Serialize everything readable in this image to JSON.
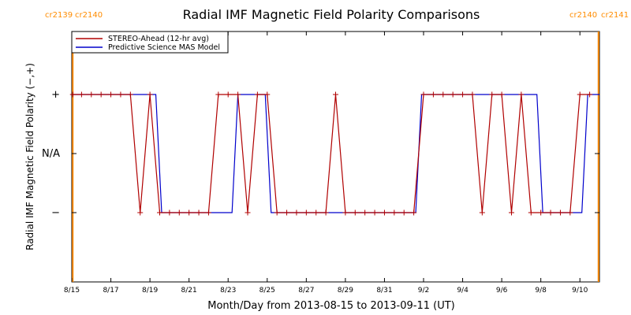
{
  "chart_data": {
    "type": "line",
    "title": "Radial IMF Magnetic Field Polarity Comparisons",
    "xlabel": "Month/Day from 2013-08-15 to 2013-09-11 (UT)",
    "ylabel": "Radial IMF Magnetic Field Polarity (−,+)",
    "x_range_days": [
      0,
      27
    ],
    "y_categories": [
      "−",
      "N/A",
      "+"
    ],
    "y_category_values": [
      -1,
      0,
      1
    ],
    "x_ticks": [
      {
        "day": 0,
        "label": "8/15"
      },
      {
        "day": 2,
        "label": "8/17"
      },
      {
        "day": 4,
        "label": "8/19"
      },
      {
        "day": 6,
        "label": "8/21"
      },
      {
        "day": 8,
        "label": "8/23"
      },
      {
        "day": 10,
        "label": "8/25"
      },
      {
        "day": 12,
        "label": "8/27"
      },
      {
        "day": 14,
        "label": "8/29"
      },
      {
        "day": 16,
        "label": "8/31"
      },
      {
        "day": 18,
        "label": "9/2"
      },
      {
        "day": 20,
        "label": "9/4"
      },
      {
        "day": 22,
        "label": "9/6"
      },
      {
        "day": 24,
        "label": "9/8"
      },
      {
        "day": 26,
        "label": "9/10"
      }
    ],
    "carrington_rotations": [
      {
        "day": 0.05,
        "left_label": "cr2139",
        "right_label": "cr2140"
      },
      {
        "day": 26.95,
        "left_label": "cr2140",
        "right_label": "cr2141"
      }
    ],
    "legend_position": "top-left",
    "series": [
      {
        "name": "STEREO-Ahead (12-hr avg)",
        "color": "#b00000",
        "markers": true,
        "points": [
          [
            0.05,
            1
          ],
          [
            0.5,
            1
          ],
          [
            1.0,
            1
          ],
          [
            1.5,
            1
          ],
          [
            2.0,
            1
          ],
          [
            2.5,
            1
          ],
          [
            3.0,
            1
          ],
          [
            3.5,
            -1
          ],
          [
            4.0,
            1
          ],
          [
            4.5,
            -1
          ],
          [
            5.0,
            -1
          ],
          [
            5.5,
            -1
          ],
          [
            6.0,
            -1
          ],
          [
            6.5,
            -1
          ],
          [
            7.0,
            -1
          ],
          [
            7.5,
            1
          ],
          [
            8.0,
            1
          ],
          [
            8.5,
            1
          ],
          [
            9.0,
            -1
          ],
          [
            9.5,
            1
          ],
          [
            10.0,
            1
          ],
          [
            10.5,
            -1
          ],
          [
            11.0,
            -1
          ],
          [
            11.5,
            -1
          ],
          [
            12.0,
            -1
          ],
          [
            12.5,
            -1
          ],
          [
            13.0,
            -1
          ],
          [
            13.5,
            1
          ],
          [
            14.0,
            -1
          ],
          [
            14.5,
            -1
          ],
          [
            15.0,
            -1
          ],
          [
            15.5,
            -1
          ],
          [
            16.0,
            -1
          ],
          [
            16.5,
            -1
          ],
          [
            17.0,
            -1
          ],
          [
            17.5,
            -1
          ],
          [
            18.0,
            1
          ],
          [
            18.5,
            1
          ],
          [
            19.0,
            1
          ],
          [
            19.5,
            1
          ],
          [
            20.0,
            1
          ],
          [
            20.5,
            1
          ],
          [
            21.0,
            -1
          ],
          [
            21.5,
            1
          ],
          [
            22.0,
            1
          ],
          [
            22.5,
            -1
          ],
          [
            23.0,
            1
          ],
          [
            23.5,
            -1
          ],
          [
            24.0,
            -1
          ],
          [
            24.5,
            -1
          ],
          [
            25.0,
            -1
          ],
          [
            25.5,
            -1
          ],
          [
            26.0,
            1
          ],
          [
            26.5,
            1
          ]
        ]
      },
      {
        "name": "Predictive Science MAS Model",
        "color": "#0000cc",
        "markers": false,
        "points": [
          [
            0,
            1
          ],
          [
            4.3,
            1
          ],
          [
            4.6,
            -1
          ],
          [
            8.2,
            -1
          ],
          [
            8.5,
            1
          ],
          [
            9.9,
            1
          ],
          [
            10.2,
            -1
          ],
          [
            17.6,
            -1
          ],
          [
            17.9,
            1
          ],
          [
            23.8,
            1
          ],
          [
            24.1,
            -1
          ],
          [
            26.1,
            -1
          ],
          [
            26.4,
            1
          ],
          [
            27,
            1
          ]
        ]
      }
    ]
  }
}
